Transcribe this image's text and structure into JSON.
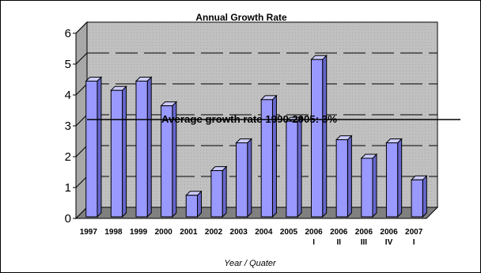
{
  "chart_data": {
    "type": "bar",
    "title": "Annual Growth Rate",
    "subtitle": "%",
    "xlabel": "Year / Quater",
    "ylabel": "",
    "ylim": [
      0,
      6
    ],
    "yticks": [
      0,
      1,
      2,
      3,
      4,
      5,
      6
    ],
    "grid": true,
    "legend": "none",
    "categories": [
      [
        "1997"
      ],
      [
        "1998"
      ],
      [
        "1999"
      ],
      [
        "2000"
      ],
      [
        "2001"
      ],
      [
        "2002"
      ],
      [
        "2003"
      ],
      [
        "2004"
      ],
      [
        "2005"
      ],
      [
        "2006",
        "I"
      ],
      [
        "2006",
        "II"
      ],
      [
        "2006",
        "III"
      ],
      [
        "2006",
        "IV"
      ],
      [
        "2007",
        "I"
      ]
    ],
    "values": [
      4.5,
      4.2,
      4.5,
      3.7,
      0.8,
      1.6,
      2.5,
      3.9,
      3.2,
      5.2,
      2.6,
      2.0,
      2.5,
      1.3
    ],
    "reference_line": {
      "value": 3.1,
      "label": "Average growth rate 1990-2005: 3%"
    },
    "colors": {
      "bar_front": "#9999ff",
      "bar_side": "#6666cc",
      "bar_top": "#ccccff",
      "wall": "#c0c0c0",
      "floor": "#808080",
      "grid": "#000000"
    }
  }
}
